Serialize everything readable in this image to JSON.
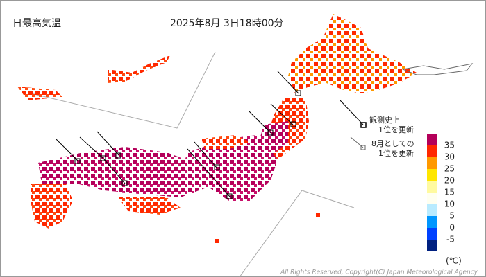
{
  "header": {
    "title": "日最高気温",
    "timestamp": "2025年8月 3日18時00分"
  },
  "notes": [
    {
      "lines": [
        "観測史上",
        "1位を更新"
      ]
    },
    {
      "lines": [
        "8月としての",
        "1位を更新"
      ]
    }
  ],
  "legend": {
    "colors": [
      "#b4005a",
      "#ff2800",
      "#ff9900",
      "#ffe600",
      "#fffaa0",
      "#fffff0",
      "#b9ebff",
      "#0096ff",
      "#0041ff",
      "#002080"
    ],
    "labels": [
      "35",
      "30",
      "25",
      "20",
      "15",
      "10",
      "5",
      "0",
      "-5"
    ],
    "unit": "(℃)"
  },
  "copyright": "All Rights Reserved, Copyright(C) Japan Meteorological Agency"
}
